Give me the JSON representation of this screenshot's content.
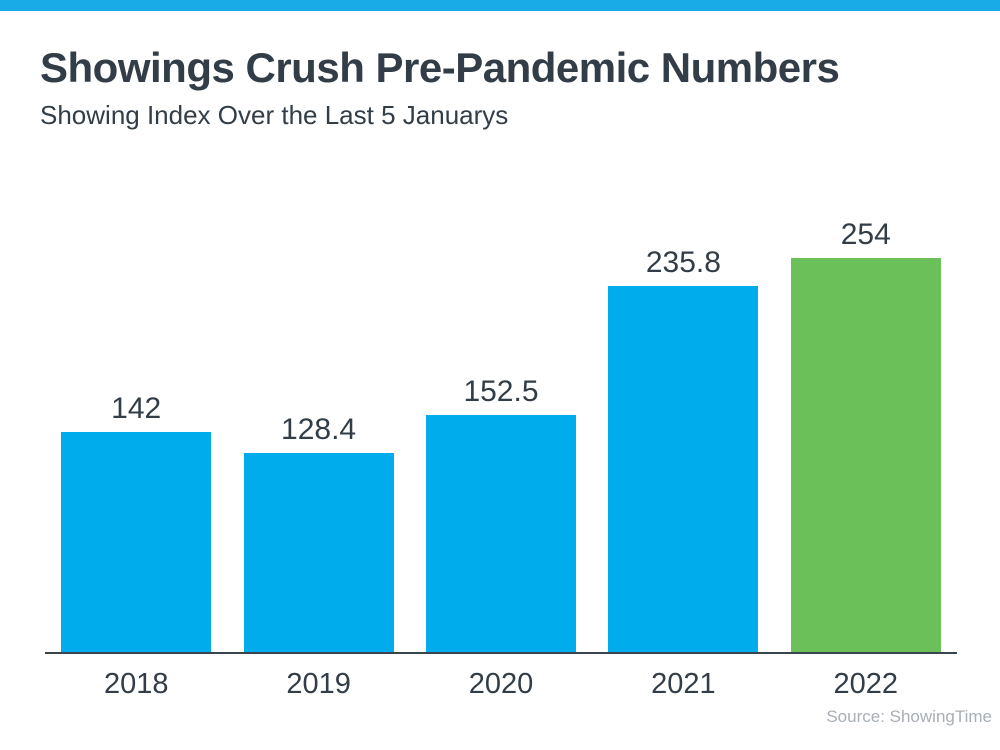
{
  "page": {
    "title": "Showings Crush Pre-Pandemic Numbers",
    "subtitle": "Showing Index Over the Last 5 Januarys",
    "source": "Source: ShowingTime"
  },
  "colors": {
    "top_strip": "#18abe8",
    "bar_default": "#00aceb",
    "bar_highlight": "#6cc05a",
    "text_dark": "#323d47",
    "axis": "#3a444c",
    "source_text": "#a9afb6"
  },
  "chart_data": {
    "type": "bar",
    "title": "Showings Crush Pre-Pandemic Numbers",
    "subtitle": "Showing Index Over the Last 5 Januarys",
    "categories": [
      "2018",
      "2019",
      "2020",
      "2021",
      "2022"
    ],
    "values": [
      142,
      128.4,
      152.5,
      235.8,
      254
    ],
    "value_labels": [
      "142",
      "128.4",
      "152.5",
      "235.8",
      "254"
    ],
    "bar_colors": [
      "#00aceb",
      "#00aceb",
      "#00aceb",
      "#00aceb",
      "#6cc05a"
    ],
    "xlabel": "",
    "ylabel": "",
    "ylim": [
      0,
      254
    ],
    "grid": false,
    "legend": false,
    "data_labels": "above-bars",
    "source": "Source: ShowingTime"
  }
}
